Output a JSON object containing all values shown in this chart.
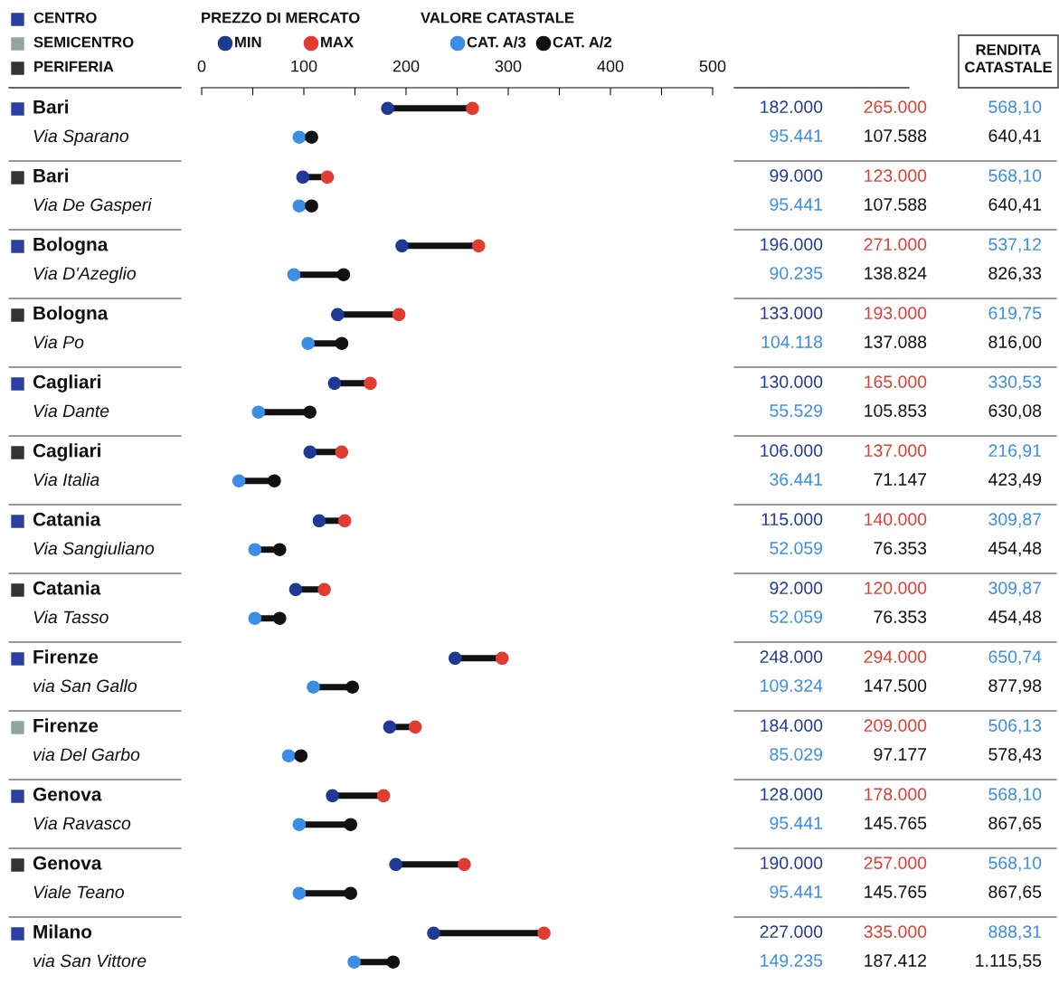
{
  "chart_data": {
    "type": "scatter",
    "orientation": "horizontal",
    "marker": "circle",
    "legend": "top",
    "grid": false,
    "categories": [
      "Bari\nVia Sparano",
      "Bari\nVia De Gasperi",
      "Bologna\nVia D'Azeglio",
      "Bologna\nVia Po",
      "Cagliari\nVia Dante",
      "Cagliari\nVia Italia",
      "Catania\nVia Sangiuliano",
      "Catania\nVia Tasso",
      "Firenze\nvia San Gallo",
      "Firenze\nvia Del Garbo",
      "Genova\nVia Ravasco",
      "Genova\nViale Teano",
      "Milano\nvia San Vittore"
    ],
    "colors": [
      "#2b3fa0",
      "#333333",
      "#2b3fa0",
      "#333333",
      "#2b3fa0",
      "#333333",
      "#2b3fa0",
      "#333333",
      "#2b3fa0",
      "#8fa89a",
      "#2b3fa0",
      "#333333",
      "#2b3fa0"
    ],
    "xlim": [
      0,
      500
    ],
    "xticks": [
      0,
      {
        "value": 50,
        "label": null
      },
      100,
      {
        "value": 150,
        "label": null
      },
      200,
      {
        "value": 250,
        "label": null
      },
      300,
      {
        "value": 350,
        "label": null
      },
      400,
      {
        "value": 450,
        "label": null
      },
      500
    ],
    "series": [
      {
        "name": "MIN",
        "color": "#1f3a93",
        "values": [
          182,
          99,
          196,
          133,
          130,
          106,
          115,
          92,
          248,
          184,
          128,
          190,
          227
        ]
      },
      {
        "name": "MAX",
        "color": "#e03c31",
        "values": [
          265,
          123,
          271,
          193,
          165,
          137,
          140,
          120,
          294,
          209,
          178,
          257,
          335
        ]
      },
      {
        "name": "CAT. A/3",
        "color": "#3a8ee6",
        "values": [
          95.441,
          95.441,
          90.235,
          104.118,
          55.529,
          36.441,
          52.059,
          52.059,
          109.324,
          85.029,
          95.441,
          95.441,
          149.235
        ]
      },
      {
        "name": "CAT. A/2",
        "color": "#111111",
        "values": [
          107.588,
          107.588,
          138.824,
          137.088,
          105.853,
          71.147,
          76.353,
          76.353,
          147.5,
          97.177,
          145.765,
          145.765,
          187.412
        ]
      }
    ],
    "annotations": [
      "CENTRO",
      "SEMICENTRO",
      "PERIFERIA",
      "PREZZO DI MERCATO",
      "VALORE CATASTALE",
      "RENDITA\nCATASTALE",
      "182.000",
      "265.000",
      "568,10",
      "95.441",
      "107.588",
      "640,41",
      "99.000",
      "123.000",
      "568,10",
      "95.441",
      "107.588",
      "640,41",
      "196.000",
      "271.000",
      "537,12",
      "90.235",
      "138.824",
      "826,33",
      "133.000",
      "193.000",
      "619,75",
      "104.118",
      "137.088",
      "816,00",
      "130.000",
      "165.000",
      "330,53",
      "55.529",
      "105.853",
      "630,08",
      "106.000",
      "137.000",
      "216,91",
      "36.441",
      "71.147",
      "423,49",
      "115.000",
      "140.000",
      "309,87",
      "52.059",
      "76.353",
      "454,48",
      "92.000",
      "120.000",
      "309,87",
      "52.059",
      "76.353",
      "454,48",
      "248.000",
      "294.000",
      "650,74",
      "109.324",
      "147.500",
      "877,98",
      "184.000",
      "209.000",
      "506,13",
      "85.029",
      "97.177",
      "578,43",
      "128.000",
      "178.000",
      "568,10",
      "95.441",
      "145.765",
      "867,65",
      "190.000",
      "257.000",
      "568,10",
      "95.441",
      "145.765",
      "867,65",
      "227.000",
      "335.000",
      "888,31",
      "149.235",
      "187.412",
      "1.115,55"
    ]
  }
}
